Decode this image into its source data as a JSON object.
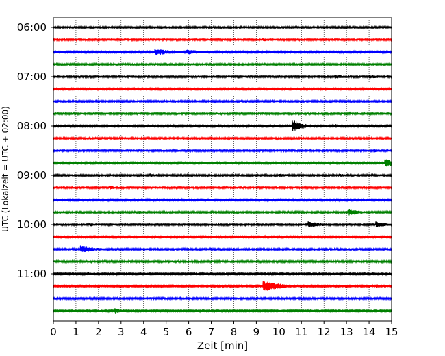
{
  "chart_data": {
    "type": "line",
    "title": "",
    "xlabel": "Zeit  [min]",
    "ylabel": "UTC (Lokalzeit = UTC + 02:00)",
    "xlim": [
      0,
      15
    ],
    "x_ticks": [
      "0",
      "1",
      "2",
      "3",
      "4",
      "5",
      "6",
      "7",
      "8",
      "9",
      "10",
      "11",
      "12",
      "13",
      "14",
      "15"
    ],
    "y_ticks": [
      "06:00",
      "07:00",
      "08:00",
      "09:00",
      "10:00",
      "11:00"
    ],
    "grid": "vertical dotted",
    "trace_interval_minutes": 15,
    "colors": [
      "#000000",
      "#ff0000",
      "#0000ff",
      "#008000"
    ],
    "series": [
      {
        "start": "06:00",
        "color": "#000000",
        "events": []
      },
      {
        "start": "06:15",
        "color": "#ff0000",
        "events": [
          {
            "t": 9.3,
            "amp": 2.5,
            "dur": 0.8
          }
        ]
      },
      {
        "start": "06:30",
        "color": "#0000ff",
        "events": [
          {
            "t": 4.5,
            "amp": 5,
            "dur": 1.2
          },
          {
            "t": 5.9,
            "amp": 4,
            "dur": 0.9
          }
        ]
      },
      {
        "start": "06:45",
        "color": "#008000",
        "events": []
      },
      {
        "start": "07:00",
        "color": "#000000",
        "events": [
          {
            "t": 12.5,
            "amp": 3,
            "dur": 0.6
          },
          {
            "t": 14.0,
            "amp": 3,
            "dur": 0.8
          }
        ]
      },
      {
        "start": "07:15",
        "color": "#ff0000",
        "events": [
          {
            "t": 12.0,
            "amp": 3,
            "dur": 0.5
          }
        ]
      },
      {
        "start": "07:30",
        "color": "#0000ff",
        "events": []
      },
      {
        "start": "07:45",
        "color": "#008000",
        "events": []
      },
      {
        "start": "08:00",
        "color": "#000000",
        "events": [
          {
            "t": 10.6,
            "amp": 9,
            "dur": 0.6
          },
          {
            "t": 12.5,
            "amp": 3,
            "dur": 0.4
          }
        ]
      },
      {
        "start": "08:15",
        "color": "#ff0000",
        "events": []
      },
      {
        "start": "08:30",
        "color": "#0000ff",
        "events": [
          {
            "t": 14.2,
            "amp": 3,
            "dur": 0.4
          }
        ]
      },
      {
        "start": "08:45",
        "color": "#008000",
        "events": [
          {
            "t": 14.7,
            "amp": 7,
            "dur": 0.5
          }
        ]
      },
      {
        "start": "09:00",
        "color": "#000000",
        "events": [
          {
            "t": 4.3,
            "amp": 3,
            "dur": 0.5
          },
          {
            "t": 10.0,
            "amp": 3,
            "dur": 0.6
          },
          {
            "t": 12.7,
            "amp": 3,
            "dur": 0.3
          }
        ]
      },
      {
        "start": "09:15",
        "color": "#ff0000",
        "events": [
          {
            "t": 2.5,
            "amp": 4,
            "dur": 0.2
          }
        ]
      },
      {
        "start": "09:30",
        "color": "#0000ff",
        "events": []
      },
      {
        "start": "09:45",
        "color": "#008000",
        "events": [
          {
            "t": 3.8,
            "amp": 3,
            "dur": 0.5
          },
          {
            "t": 13.1,
            "amp": 5,
            "dur": 0.6
          }
        ]
      },
      {
        "start": "10:00",
        "color": "#000000",
        "events": [
          {
            "t": 1.6,
            "amp": 3,
            "dur": 0.4
          },
          {
            "t": 11.3,
            "amp": 5,
            "dur": 0.7
          },
          {
            "t": 14.3,
            "amp": 5,
            "dur": 0.5
          }
        ]
      },
      {
        "start": "10:15",
        "color": "#ff0000",
        "events": []
      },
      {
        "start": "10:30",
        "color": "#0000ff",
        "events": [
          {
            "t": 1.2,
            "amp": 6,
            "dur": 0.7
          }
        ]
      },
      {
        "start": "10:45",
        "color": "#008000",
        "events": []
      },
      {
        "start": "11:00",
        "color": "#000000",
        "events": [
          {
            "t": 1.5,
            "amp": 2.5,
            "dur": 0.5
          }
        ]
      },
      {
        "start": "11:15",
        "color": "#ff0000",
        "events": [
          {
            "t": 9.3,
            "amp": 8,
            "dur": 0.9
          },
          {
            "t": 14.3,
            "amp": 3,
            "dur": 0.4
          }
        ]
      },
      {
        "start": "11:30",
        "color": "#0000ff",
        "events": []
      },
      {
        "start": "11:45",
        "color": "#008000",
        "events": [
          {
            "t": 2.7,
            "amp": 4,
            "dur": 0.6
          }
        ]
      }
    ]
  }
}
